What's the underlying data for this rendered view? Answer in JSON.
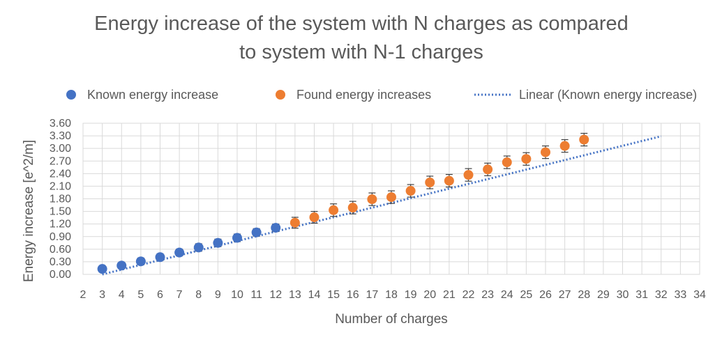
{
  "chart_data": {
    "type": "scatter",
    "title_lines": [
      "Energy increase of the system with N charges as compared",
      "to system with N-1 charges"
    ],
    "xlabel": "Number of charges",
    "ylabel": "Energy increase [e^2/m]",
    "xlim": [
      2,
      34
    ],
    "ylim": [
      0,
      3.6
    ],
    "x_ticks": [
      2,
      3,
      4,
      5,
      6,
      7,
      8,
      9,
      10,
      11,
      12,
      13,
      14,
      15,
      16,
      17,
      18,
      19,
      20,
      21,
      22,
      23,
      24,
      25,
      26,
      27,
      28,
      29,
      30,
      31,
      32,
      33,
      34
    ],
    "y_ticks": [
      "0.00",
      "0.30",
      "0.60",
      "0.90",
      "1.20",
      "1.50",
      "1.80",
      "2.10",
      "2.40",
      "2.70",
      "3.00",
      "3.30",
      "3.60"
    ],
    "grid": true,
    "legend_position": "top",
    "series": [
      {
        "name": "Known energy increase",
        "color": "#4472c4",
        "marker": "circle",
        "x": [
          3,
          4,
          5,
          6,
          7,
          8,
          9,
          10,
          11,
          12
        ],
        "y": [
          0.13,
          0.21,
          0.31,
          0.41,
          0.52,
          0.64,
          0.75,
          0.87,
          1.0,
          1.11
        ],
        "error": [
          0.07,
          0.07,
          0.08,
          0.08,
          0.08,
          0.09,
          0.09,
          0.09,
          0.09,
          0.09
        ]
      },
      {
        "name": "Found energy increases",
        "color": "#ed7d31",
        "marker": "circle",
        "x": [
          13,
          14,
          15,
          16,
          17,
          18,
          19,
          20,
          21,
          22,
          23,
          24,
          25,
          26,
          27,
          28
        ],
        "y": [
          1.23,
          1.36,
          1.53,
          1.59,
          1.79,
          1.84,
          1.99,
          2.19,
          2.23,
          2.37,
          2.5,
          2.67,
          2.75,
          2.91,
          3.06,
          3.21
        ],
        "error": [
          0.13,
          0.14,
          0.15,
          0.15,
          0.15,
          0.15,
          0.15,
          0.15,
          0.15,
          0.15,
          0.15,
          0.15,
          0.15,
          0.15,
          0.15,
          0.15
        ]
      },
      {
        "name": "Linear (Known energy increase)",
        "color": "#4472c4",
        "style": "dotted",
        "x": [
          3,
          32
        ],
        "y": [
          0.0,
          3.29
        ]
      }
    ]
  }
}
